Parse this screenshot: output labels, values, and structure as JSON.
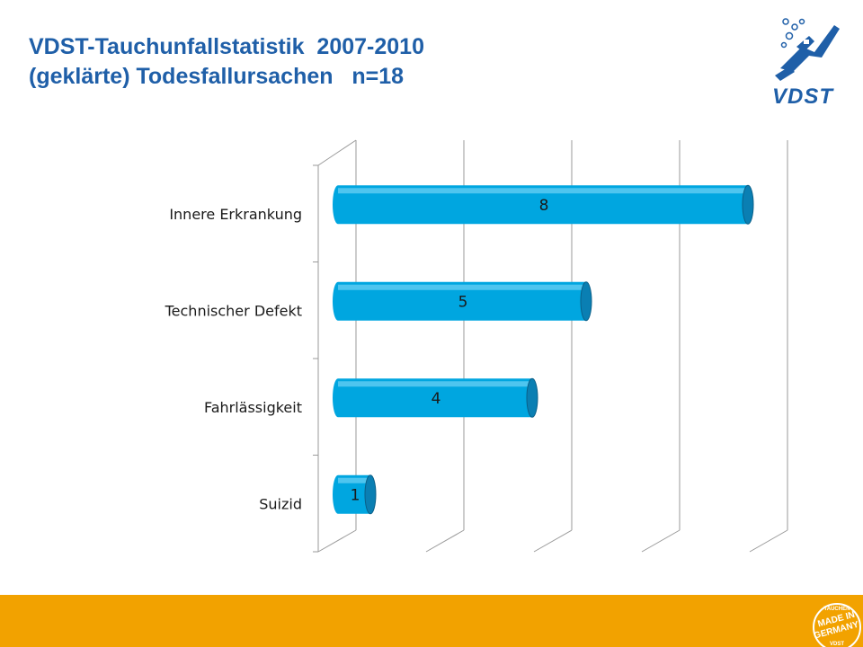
{
  "slide": {
    "title_line1": "VDST-Tauchunfallstatistik  2007-2010",
    "title_line2": "(geklärte) Todesfallursachen   n=18",
    "logo_text": "VDST",
    "badge_text": [
      "TAUCHEN",
      "MADE IN",
      "GERMANY",
      "VDST"
    ],
    "footer_color": "#f2a200",
    "accent_color": "#1f5fa8"
  },
  "chart_data": {
    "type": "bar",
    "orientation": "horizontal",
    "title": "",
    "xlabel": "",
    "ylabel": "",
    "categories": [
      "Innere Erkrankung",
      "Technischer Defekt",
      "Fahrlässigkeit",
      "Suizid"
    ],
    "values": [
      8,
      5,
      4,
      1
    ],
    "data_labels": [
      "8",
      "5",
      "4",
      "1"
    ],
    "xlim": [
      0,
      8
    ],
    "grid": true,
    "legend": "none",
    "bar_color": "#00a6e0"
  }
}
